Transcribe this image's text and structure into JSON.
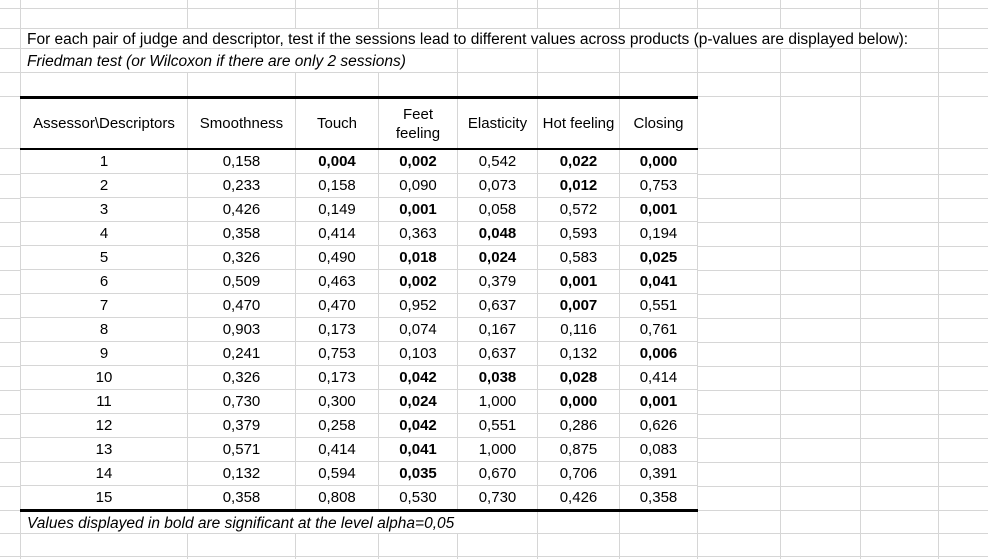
{
  "sheet": {
    "intro_line1": "For each pair of judge and descriptor, test if the sessions lead to different values across products (p-values are displayed below):",
    "intro_line2": "Friedman test (or Wilcoxon if there are only 2 sessions)",
    "footnote": "Values displayed in bold are significant at the level alpha=0,05"
  },
  "table": {
    "corner_header": "Assessor\\Descriptors",
    "descriptors": [
      "Smoothness",
      "Touch",
      "Feet feeling",
      "Elasticity",
      "Hot feeling",
      "Closing"
    ],
    "rows": [
      {
        "assessor": "1",
        "values": [
          "0,158",
          "0,004",
          "0,002",
          "0,542",
          "0,022",
          "0,000"
        ],
        "bold": [
          false,
          true,
          true,
          false,
          true,
          true
        ]
      },
      {
        "assessor": "2",
        "values": [
          "0,233",
          "0,158",
          "0,090",
          "0,073",
          "0,012",
          "0,753"
        ],
        "bold": [
          false,
          false,
          false,
          false,
          true,
          false
        ]
      },
      {
        "assessor": "3",
        "values": [
          "0,426",
          "0,149",
          "0,001",
          "0,058",
          "0,572",
          "0,001"
        ],
        "bold": [
          false,
          false,
          true,
          false,
          false,
          true
        ]
      },
      {
        "assessor": "4",
        "values": [
          "0,358",
          "0,414",
          "0,363",
          "0,048",
          "0,593",
          "0,194"
        ],
        "bold": [
          false,
          false,
          false,
          true,
          false,
          false
        ]
      },
      {
        "assessor": "5",
        "values": [
          "0,326",
          "0,490",
          "0,018",
          "0,024",
          "0,583",
          "0,025"
        ],
        "bold": [
          false,
          false,
          true,
          true,
          false,
          true
        ]
      },
      {
        "assessor": "6",
        "values": [
          "0,509",
          "0,463",
          "0,002",
          "0,379",
          "0,001",
          "0,041"
        ],
        "bold": [
          false,
          false,
          true,
          false,
          true,
          true
        ]
      },
      {
        "assessor": "7",
        "values": [
          "0,470",
          "0,470",
          "0,952",
          "0,637",
          "0,007",
          "0,551"
        ],
        "bold": [
          false,
          false,
          false,
          false,
          true,
          false
        ]
      },
      {
        "assessor": "8",
        "values": [
          "0,903",
          "0,173",
          "0,074",
          "0,167",
          "0,116",
          "0,761"
        ],
        "bold": [
          false,
          false,
          false,
          false,
          false,
          false
        ]
      },
      {
        "assessor": "9",
        "values": [
          "0,241",
          "0,753",
          "0,103",
          "0,637",
          "0,132",
          "0,006"
        ],
        "bold": [
          false,
          false,
          false,
          false,
          false,
          true
        ]
      },
      {
        "assessor": "10",
        "values": [
          "0,326",
          "0,173",
          "0,042",
          "0,038",
          "0,028",
          "0,414"
        ],
        "bold": [
          false,
          false,
          true,
          true,
          true,
          false
        ]
      },
      {
        "assessor": "11",
        "values": [
          "0,730",
          "0,300",
          "0,024",
          "1,000",
          "0,000",
          "0,001"
        ],
        "bold": [
          false,
          false,
          true,
          false,
          true,
          true
        ]
      },
      {
        "assessor": "12",
        "values": [
          "0,379",
          "0,258",
          "0,042",
          "0,551",
          "0,286",
          "0,626"
        ],
        "bold": [
          false,
          false,
          true,
          false,
          false,
          false
        ]
      },
      {
        "assessor": "13",
        "values": [
          "0,571",
          "0,414",
          "0,041",
          "1,000",
          "0,875",
          "0,083"
        ],
        "bold": [
          false,
          false,
          true,
          false,
          false,
          false
        ]
      },
      {
        "assessor": "14",
        "values": [
          "0,132",
          "0,594",
          "0,035",
          "0,670",
          "0,706",
          "0,391"
        ],
        "bold": [
          false,
          false,
          true,
          false,
          false,
          false
        ]
      },
      {
        "assessor": "15",
        "values": [
          "0,358",
          "0,808",
          "0,530",
          "0,730",
          "0,426",
          "0,358"
        ],
        "bold": [
          false,
          false,
          false,
          false,
          false,
          false
        ]
      }
    ]
  }
}
